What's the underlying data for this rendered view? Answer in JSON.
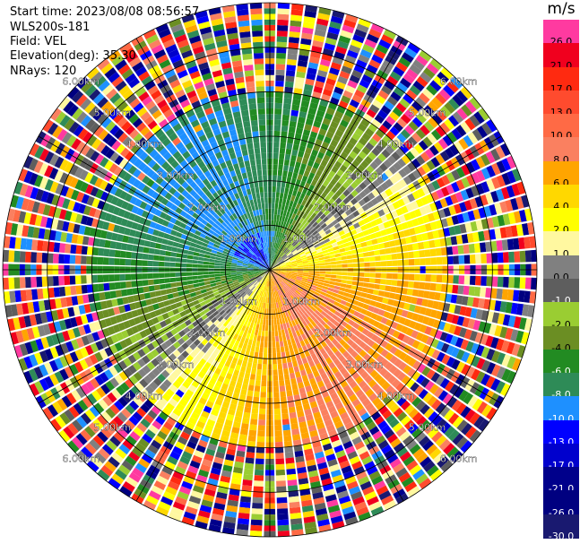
{
  "header": {
    "start_time": "Start time: 2023/08/08 08:56:57",
    "instrument": "WLS200s-181",
    "field": "Field: VEL",
    "elevation": "Elevation(deg): 35.30",
    "nrays": "NRays: 120"
  },
  "colorbar": {
    "unit": "m/s",
    "levels": [
      {
        "label": "26.0",
        "color": "#ff3aa0",
        "text": "#000000"
      },
      {
        "label": "21.0",
        "color": "#f0001e",
        "text": "#000000"
      },
      {
        "label": "17.0",
        "color": "#ff2a10",
        "text": "#000000"
      },
      {
        "label": "13.0",
        "color": "#ff4b2e",
        "text": "#000000"
      },
      {
        "label": "10.0",
        "color": "#ff6a45",
        "text": "#000000"
      },
      {
        "label": "8.0",
        "color": "#fa8060",
        "text": "#000000"
      },
      {
        "label": "6.0",
        "color": "#ffa500",
        "text": "#000000"
      },
      {
        "label": "4.0",
        "color": "#ffd800",
        "text": "#000000"
      },
      {
        "label": "2.0",
        "color": "#ffff00",
        "text": "#000000"
      },
      {
        "label": "1.0",
        "color": "#fff8a0",
        "text": "#000000"
      },
      {
        "label": "0.0",
        "color": "#808080",
        "text": "#000000"
      },
      {
        "label": "-1.0",
        "color": "#5e5e5e",
        "text": "#ffffff"
      },
      {
        "label": "-2.0",
        "color": "#9acd32",
        "text": "#000000"
      },
      {
        "label": "-4.0",
        "color": "#6b8e23",
        "text": "#000000"
      },
      {
        "label": "-6.0",
        "color": "#228b22",
        "text": "#ffffff"
      },
      {
        "label": "-8.0",
        "color": "#2e8b57",
        "text": "#ffffff"
      },
      {
        "label": "-10.0",
        "color": "#1e90ff",
        "text": "#ffffff"
      },
      {
        "label": "-13.0",
        "color": "#0000ff",
        "text": "#ffffff"
      },
      {
        "label": "-17.0",
        "color": "#0000cd",
        "text": "#ffffff"
      },
      {
        "label": "-21.0",
        "color": "#00008b",
        "text": "#ffffff"
      },
      {
        "label": "-26.0",
        "color": "#000080",
        "text": "#ffffff"
      },
      {
        "label": "-30.0",
        "color": "#191970",
        "text": "#ffffff"
      }
    ]
  },
  "chart_data": {
    "type": "heatmap",
    "projection": "polar PPI",
    "field": "VEL",
    "rays": 120,
    "max_range_km": 6.0,
    "range_rings_km": [
      1.0,
      2.0,
      3.0,
      4.0,
      5.0,
      6.0
    ],
    "ring_label_texts": [
      "1.00km",
      "2.00km",
      "3.00km",
      "4.00km",
      "5.00km",
      "6.00km"
    ],
    "valid_data_range_km": 4.0,
    "velocity_pattern": {
      "positive_direction_deg_from_north": 140,
      "negative_direction_deg_from_north": 320,
      "amplitude_ms": 8.5,
      "near_core_negative_ms": -10.5
    },
    "noise_beyond_km": 4.0
  }
}
